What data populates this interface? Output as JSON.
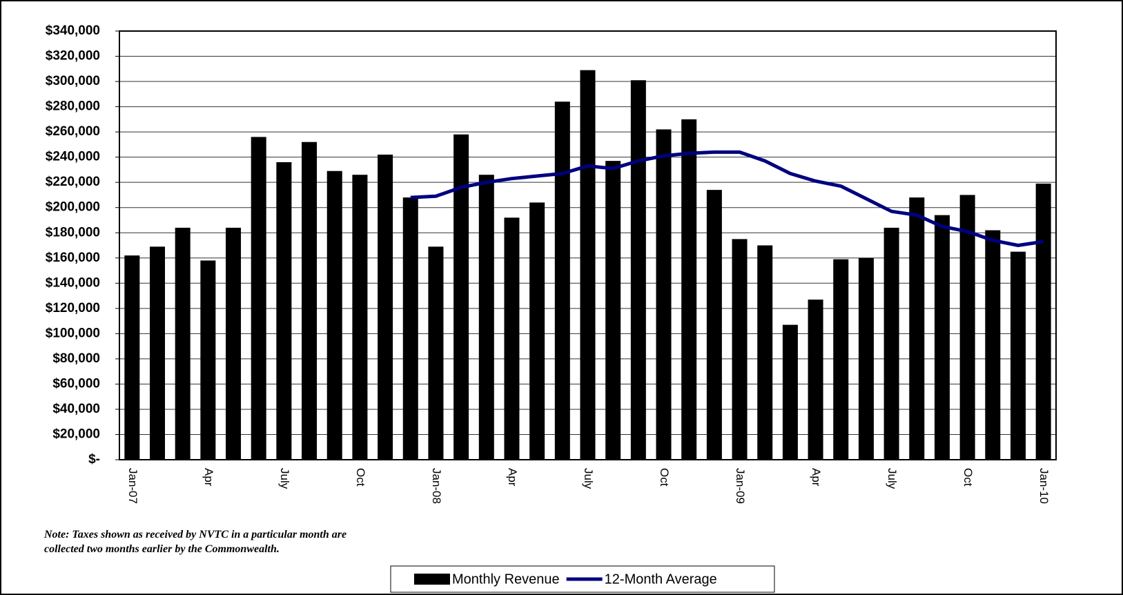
{
  "chart_data": {
    "type": "bar_line",
    "categories": [
      "Jan-07",
      null,
      null,
      "Apr",
      null,
      null,
      "July",
      null,
      null,
      "Oct",
      null,
      null,
      "Jan-08",
      null,
      null,
      "Apr",
      null,
      null,
      "July",
      null,
      null,
      "Oct",
      null,
      null,
      "Jan-09",
      null,
      null,
      "Apr",
      null,
      null,
      "July",
      null,
      null,
      "Oct",
      null,
      null,
      "Jan-10"
    ],
    "series": [
      {
        "name": "Monthly Revenue",
        "type": "bar",
        "color": "#000000",
        "values": [
          162000,
          169000,
          184000,
          158000,
          184000,
          256000,
          236000,
          252000,
          229000,
          226000,
          242000,
          208000,
          169000,
          258000,
          226000,
          192000,
          204000,
          284000,
          309000,
          237000,
          301000,
          262000,
          270000,
          214000,
          175000,
          170000,
          107000,
          127000,
          159000,
          160000,
          184000,
          208000,
          194000,
          210000,
          182000,
          165000,
          219000
        ]
      },
      {
        "name": "12-Month Average",
        "type": "line",
        "color": "#000080",
        "values": [
          null,
          null,
          null,
          null,
          null,
          null,
          null,
          null,
          null,
          null,
          null,
          208000,
          209000,
          216000,
          220000,
          223000,
          225000,
          227000,
          233000,
          231000,
          237000,
          241000,
          243000,
          244000,
          244000,
          237000,
          227000,
          221000,
          217000,
          207000,
          197000,
          194000,
          185000,
          181000,
          174000,
          170000,
          173000
        ]
      }
    ],
    "ylim": [
      0,
      340000
    ],
    "yticks": [
      {
        "value": 0,
        "label": "$-"
      },
      {
        "value": 20000,
        "label": "$20,000"
      },
      {
        "value": 40000,
        "label": "$40,000"
      },
      {
        "value": 60000,
        "label": "$60,000"
      },
      {
        "value": 80000,
        "label": "$80,000"
      },
      {
        "value": 100000,
        "label": "$100,000"
      },
      {
        "value": 120000,
        "label": "$120,000"
      },
      {
        "value": 140000,
        "label": "$140,000"
      },
      {
        "value": 160000,
        "label": "$160,000"
      },
      {
        "value": 180000,
        "label": "$180,000"
      },
      {
        "value": 200000,
        "label": "$200,000"
      },
      {
        "value": 220000,
        "label": "$220,000"
      },
      {
        "value": 240000,
        "label": "$240,000"
      },
      {
        "value": 260000,
        "label": "$260,000"
      },
      {
        "value": 280000,
        "label": "$280,000"
      },
      {
        "value": 300000,
        "label": "$300,000"
      },
      {
        "value": 320000,
        "label": "$320,000"
      },
      {
        "value": 340000,
        "label": "$340,000"
      }
    ],
    "grid": true,
    "legend": "bottom",
    "annotations": [
      "Note: Taxes shown as received by NVTC in a particular month are collected two months earlier by the Commonwealth."
    ]
  }
}
